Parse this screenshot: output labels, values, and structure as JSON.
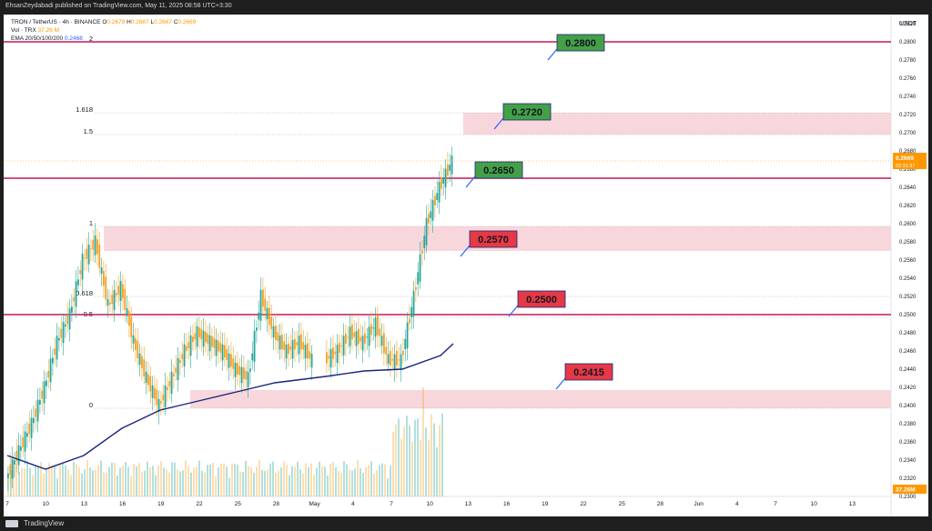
{
  "window": {
    "publish_line": "EhsanZeydabadi published on TradingView.com, May 11, 2025 08:58 UTC+3:30",
    "footer_brand": "TradingView"
  },
  "legend": {
    "symbol": "TRON / TetherUS · 4h · BINANCE",
    "o_label": "O",
    "o_value": "0.2679",
    "h_label": "H",
    "h_value": "0.2687",
    "l_label": "L",
    "l_value": "0.2667",
    "c_label": "C",
    "c_value": "0.2669",
    "vol_label": "Vol · TRX",
    "vol_value": "37.26 M",
    "ema_label": "EMA 20/50/100/200",
    "ema_value": "0.2468"
  },
  "price_axis": {
    "currency": "USDT",
    "current_price": "0.2669",
    "countdown": "02:31:37",
    "volume_badge": "37.26M"
  },
  "colors": {
    "up": "#26a69a",
    "down": "#f7a021",
    "ema": "#1a237e",
    "level_line": "#c2185b",
    "zone": "#f8d7dc",
    "tag_green": "#43a047",
    "tag_red": "#e53945",
    "price_label": "#ff9800"
  },
  "chart_data": {
    "type": "line",
    "title": "TRON / TetherUS · 4h · BINANCE",
    "xlabel": "",
    "ylabel": "USDT",
    "ylim": [
      0.23,
      0.283
    ],
    "y_ticks": [
      "0.2820",
      "0.2800",
      "0.2780",
      "0.2760",
      "0.2740",
      "0.2720",
      "0.2700",
      "0.2680",
      "0.2660",
      "0.2640",
      "0.2620",
      "0.2600",
      "0.2580",
      "0.2560",
      "0.2540",
      "0.2520",
      "0.2500",
      "0.2480",
      "0.2460",
      "0.2440",
      "0.2420",
      "0.2400",
      "0.2380",
      "0.2360",
      "0.2340",
      "0.2320",
      "0.2300"
    ],
    "x_ticks": [
      "7",
      "10",
      "13",
      "16",
      "19",
      "22",
      "25",
      "28",
      "May",
      "4",
      "7",
      "10",
      "13",
      "16",
      "19",
      "22",
      "25",
      "28",
      "Jun",
      "4",
      "7",
      "10",
      "13"
    ],
    "price_path": {
      "dates": [
        "Apr 7",
        "Apr 8",
        "Apr 9",
        "Apr 10",
        "Apr 11",
        "Apr 12",
        "Apr 13",
        "Apr 14",
        "Apr 15",
        "Apr 16",
        "Apr 17",
        "Apr 18",
        "Apr 19",
        "Apr 20",
        "Apr 21",
        "Apr 22",
        "Apr 23",
        "Apr 24",
        "Apr 25",
        "Apr 26",
        "Apr 27",
        "Apr 28",
        "Apr 29",
        "Apr 30",
        "May 1",
        "May 2",
        "May 3",
        "May 4",
        "May 5",
        "May 6",
        "May 7",
        "May 8",
        "May 9",
        "May 10",
        "May 11"
      ],
      "close": [
        0.232,
        0.235,
        0.238,
        0.242,
        0.247,
        0.25,
        0.256,
        0.258,
        0.251,
        0.253,
        0.247,
        0.243,
        0.24,
        0.243,
        0.246,
        0.248,
        0.247,
        0.246,
        0.244,
        0.243,
        0.252,
        0.248,
        0.246,
        0.247,
        0.245,
        0.246,
        0.248,
        0.247,
        0.249,
        0.245,
        0.245,
        0.252,
        0.26,
        0.264,
        0.2669
      ]
    },
    "ema_path": {
      "dates": [
        "Apr 7",
        "Apr 10",
        "Apr 13",
        "Apr 16",
        "Apr 19",
        "Apr 22",
        "Apr 25",
        "Apr 28",
        "May 1",
        "May 4",
        "May 7",
        "May 10",
        "May 11"
      ],
      "values": [
        0.2345,
        0.233,
        0.2345,
        0.2375,
        0.2395,
        0.2405,
        0.2415,
        0.2425,
        0.2432,
        0.2438,
        0.244,
        0.2455,
        0.2468
      ]
    },
    "fib_levels": [
      {
        "label": "2",
        "value": 0.28
      },
      {
        "label": "1.618",
        "value": 0.2722
      },
      {
        "label": "1.5",
        "value": 0.2698
      },
      {
        "label": "1",
        "value": 0.2597
      },
      {
        "label": "0.618",
        "value": 0.252
      },
      {
        "label": "0.5",
        "value": 0.2497
      },
      {
        "label": "0",
        "value": 0.2397
      }
    ],
    "key_levels": [
      {
        "label": "0.2800",
        "value": 0.28,
        "kind": "resistance"
      },
      {
        "label": "0.2720",
        "value": 0.272,
        "kind": "resistance"
      },
      {
        "label": "0.2650",
        "value": 0.265,
        "kind": "resistance"
      },
      {
        "label": "0.2570",
        "value": 0.257,
        "kind": "support"
      },
      {
        "label": "0.2500",
        "value": 0.25,
        "kind": "support"
      },
      {
        "label": "0.2415",
        "value": 0.2415,
        "kind": "support"
      }
    ],
    "zones": [
      {
        "from": 0.2698,
        "to": 0.2722
      },
      {
        "from": 0.257,
        "to": 0.2597
      },
      {
        "from": 0.2397,
        "to": 0.2417
      }
    ],
    "grid": false,
    "legend": "top-left"
  }
}
